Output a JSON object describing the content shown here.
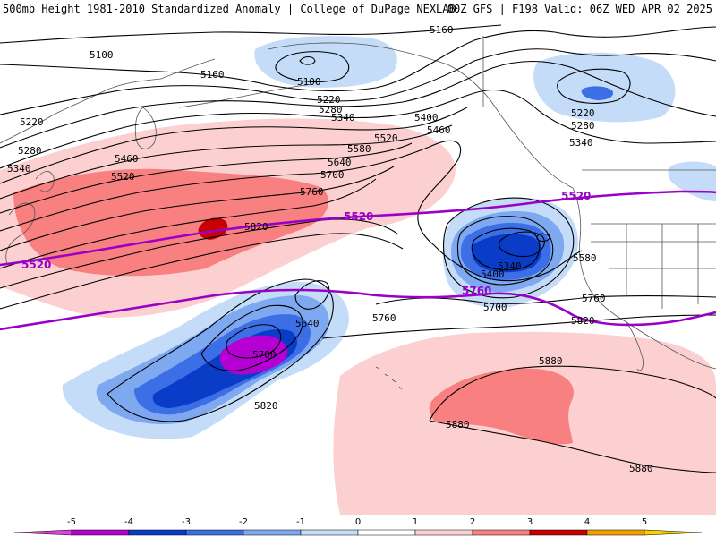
{
  "header": {
    "left": "500mb Height 1981-2010 Standardized Anomaly | College of DuPage NEXLAB",
    "right": "00Z GFS | F198 Valid: 06Z WED APR 02 2025"
  },
  "colors": {
    "anomaly_neg5": "#b400d2",
    "anomaly_neg4": "#0a3cc8",
    "anomaly_neg3": "#3c6ee6",
    "anomaly_neg2": "#7ea8f0",
    "anomaly_neg1": "#c4dcf8",
    "anomaly_pos1": "#fcd0d0",
    "anomaly_pos2": "#f88080",
    "anomaly_pos3": "#c80000",
    "anomaly_pos4": "#f0a000",
    "anomaly_pos5": "#f8d000",
    "purple_contour": "#9a00c8",
    "coast": "#444444"
  },
  "contour_labels": [
    {
      "id": "c5100a",
      "text": "5100"
    },
    {
      "id": "c5100b",
      "text": "5100"
    },
    {
      "id": "c5160a",
      "text": "5160"
    },
    {
      "id": "c5160b",
      "text": "5160"
    },
    {
      "id": "c5220a",
      "text": "5220"
    },
    {
      "id": "c5220b",
      "text": "5220"
    },
    {
      "id": "c5220c",
      "text": "5220"
    },
    {
      "id": "c5280a",
      "text": "5280"
    },
    {
      "id": "c5280b",
      "text": "5280"
    },
    {
      "id": "c5280c",
      "text": "5280"
    },
    {
      "id": "c5340a",
      "text": "5340"
    },
    {
      "id": "c5340b",
      "text": "5340"
    },
    {
      "id": "c5340c",
      "text": "5340"
    },
    {
      "id": "c5340d",
      "text": "5340"
    },
    {
      "id": "c5400a",
      "text": "5400"
    },
    {
      "id": "c5400b",
      "text": "5400"
    },
    {
      "id": "c5460a",
      "text": "5460"
    },
    {
      "id": "c5460b",
      "text": "5460"
    },
    {
      "id": "c5520a",
      "text": "5520"
    },
    {
      "id": "c5520b",
      "text": "5520"
    },
    {
      "id": "c5580a",
      "text": "5580"
    },
    {
      "id": "c5580b",
      "text": "5580"
    },
    {
      "id": "c5640a",
      "text": "5640"
    },
    {
      "id": "c5640b",
      "text": "5640"
    },
    {
      "id": "c5700a",
      "text": "5700"
    },
    {
      "id": "c5700b",
      "text": "5700"
    },
    {
      "id": "c5700c",
      "text": "5700"
    },
    {
      "id": "c5760a",
      "text": "5760"
    },
    {
      "id": "c5760b",
      "text": "5760"
    },
    {
      "id": "c5760c",
      "text": "5760"
    },
    {
      "id": "c5820a",
      "text": "5820"
    },
    {
      "id": "c5820b",
      "text": "5820"
    },
    {
      "id": "c5820c",
      "text": "5820"
    },
    {
      "id": "c5880a",
      "text": "5880"
    },
    {
      "id": "c5880b",
      "text": "5880"
    },
    {
      "id": "c5880c",
      "text": "5880"
    }
  ],
  "purple_labels": [
    {
      "id": "p5520a",
      "text": "5520"
    },
    {
      "id": "p5520b",
      "text": "5520"
    },
    {
      "id": "p5520c",
      "text": "5520"
    },
    {
      "id": "p5760a",
      "text": "5760"
    }
  ],
  "legend": {
    "ticks": [
      "-5",
      "-4",
      "-3",
      "-2",
      "-1",
      "0",
      "1",
      "2",
      "3",
      "4",
      "5"
    ]
  }
}
